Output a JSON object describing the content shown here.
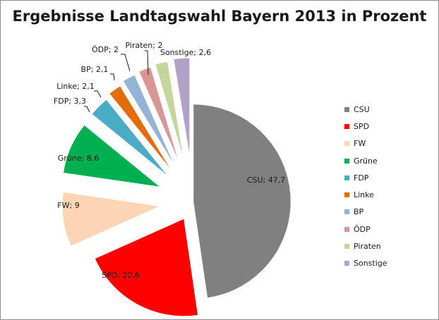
{
  "chart_data": {
    "type": "pie",
    "title": "Ergebnisse Landtagswahl Bayern 2013 in Prozent",
    "categories": [
      "CSU",
      "SPD",
      "FW",
      "Grüne",
      "FDP",
      "Linke",
      "BP",
      "ÖDP",
      "Piraten",
      "Sonstige"
    ],
    "values": [
      47.7,
      20.6,
      9,
      8.6,
      3.3,
      2.1,
      2.1,
      2,
      2,
      2.6
    ],
    "data_labels": [
      "CSU; 47,7",
      "SPD; 20,6",
      "FW; 9",
      "Grüne; 8,6",
      "FDP; 3,3",
      "Linke; 2,1",
      "BP; 2,1",
      "ÖDP; 2",
      "Piraten; 2",
      "Sonstige; 2,6"
    ],
    "colors": [
      "#808080",
      "#ff0000",
      "#fcd5b5",
      "#00b050",
      "#4bacc6",
      "#e46c0a",
      "#95b3d7",
      "#d99694",
      "#c3d69b",
      "#b3a2c7"
    ],
    "exploded": true,
    "legend_position": "right"
  }
}
